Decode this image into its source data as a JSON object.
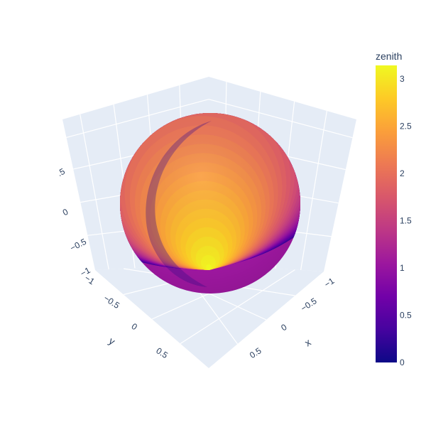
{
  "chart_data": {
    "type": "surface",
    "surface": "sphere",
    "radius": 1,
    "color_variable": "zenith",
    "colorscale": "plasma",
    "colorscale_stops": [
      "#0d0887",
      "#46039f",
      "#7201a8",
      "#9c179e",
      "#bd3786",
      "#d8576b",
      "#ed7953",
      "#fb9f3a",
      "#fdca26",
      "#f0f921"
    ],
    "colorbar": {
      "title": "zenith",
      "range": [
        0,
        3.14159
      ],
      "tick_values": [
        0,
        0.5,
        1,
        1.5,
        2,
        2.5,
        3
      ],
      "tick_labels": [
        "0",
        "0.5",
        "1",
        "1.5",
        "2",
        "2.5",
        "3"
      ]
    },
    "axes": {
      "x": {
        "title": "x",
        "range": [
          -1,
          1
        ],
        "tick_labels": [
          "−1",
          "−0.5",
          "0",
          "0.5"
        ]
      },
      "y": {
        "title": "y",
        "range": [
          -1,
          1
        ],
        "tick_labels": [
          "−1",
          "−0.5",
          "0",
          "0.5"
        ]
      },
      "z": {
        "title": "",
        "range": [
          -1,
          1
        ],
        "tick_labels": [
          ".5",
          "0",
          "−0.5",
          "−1"
        ]
      }
    },
    "scene_background": "#e5ecf6",
    "grid": true
  }
}
